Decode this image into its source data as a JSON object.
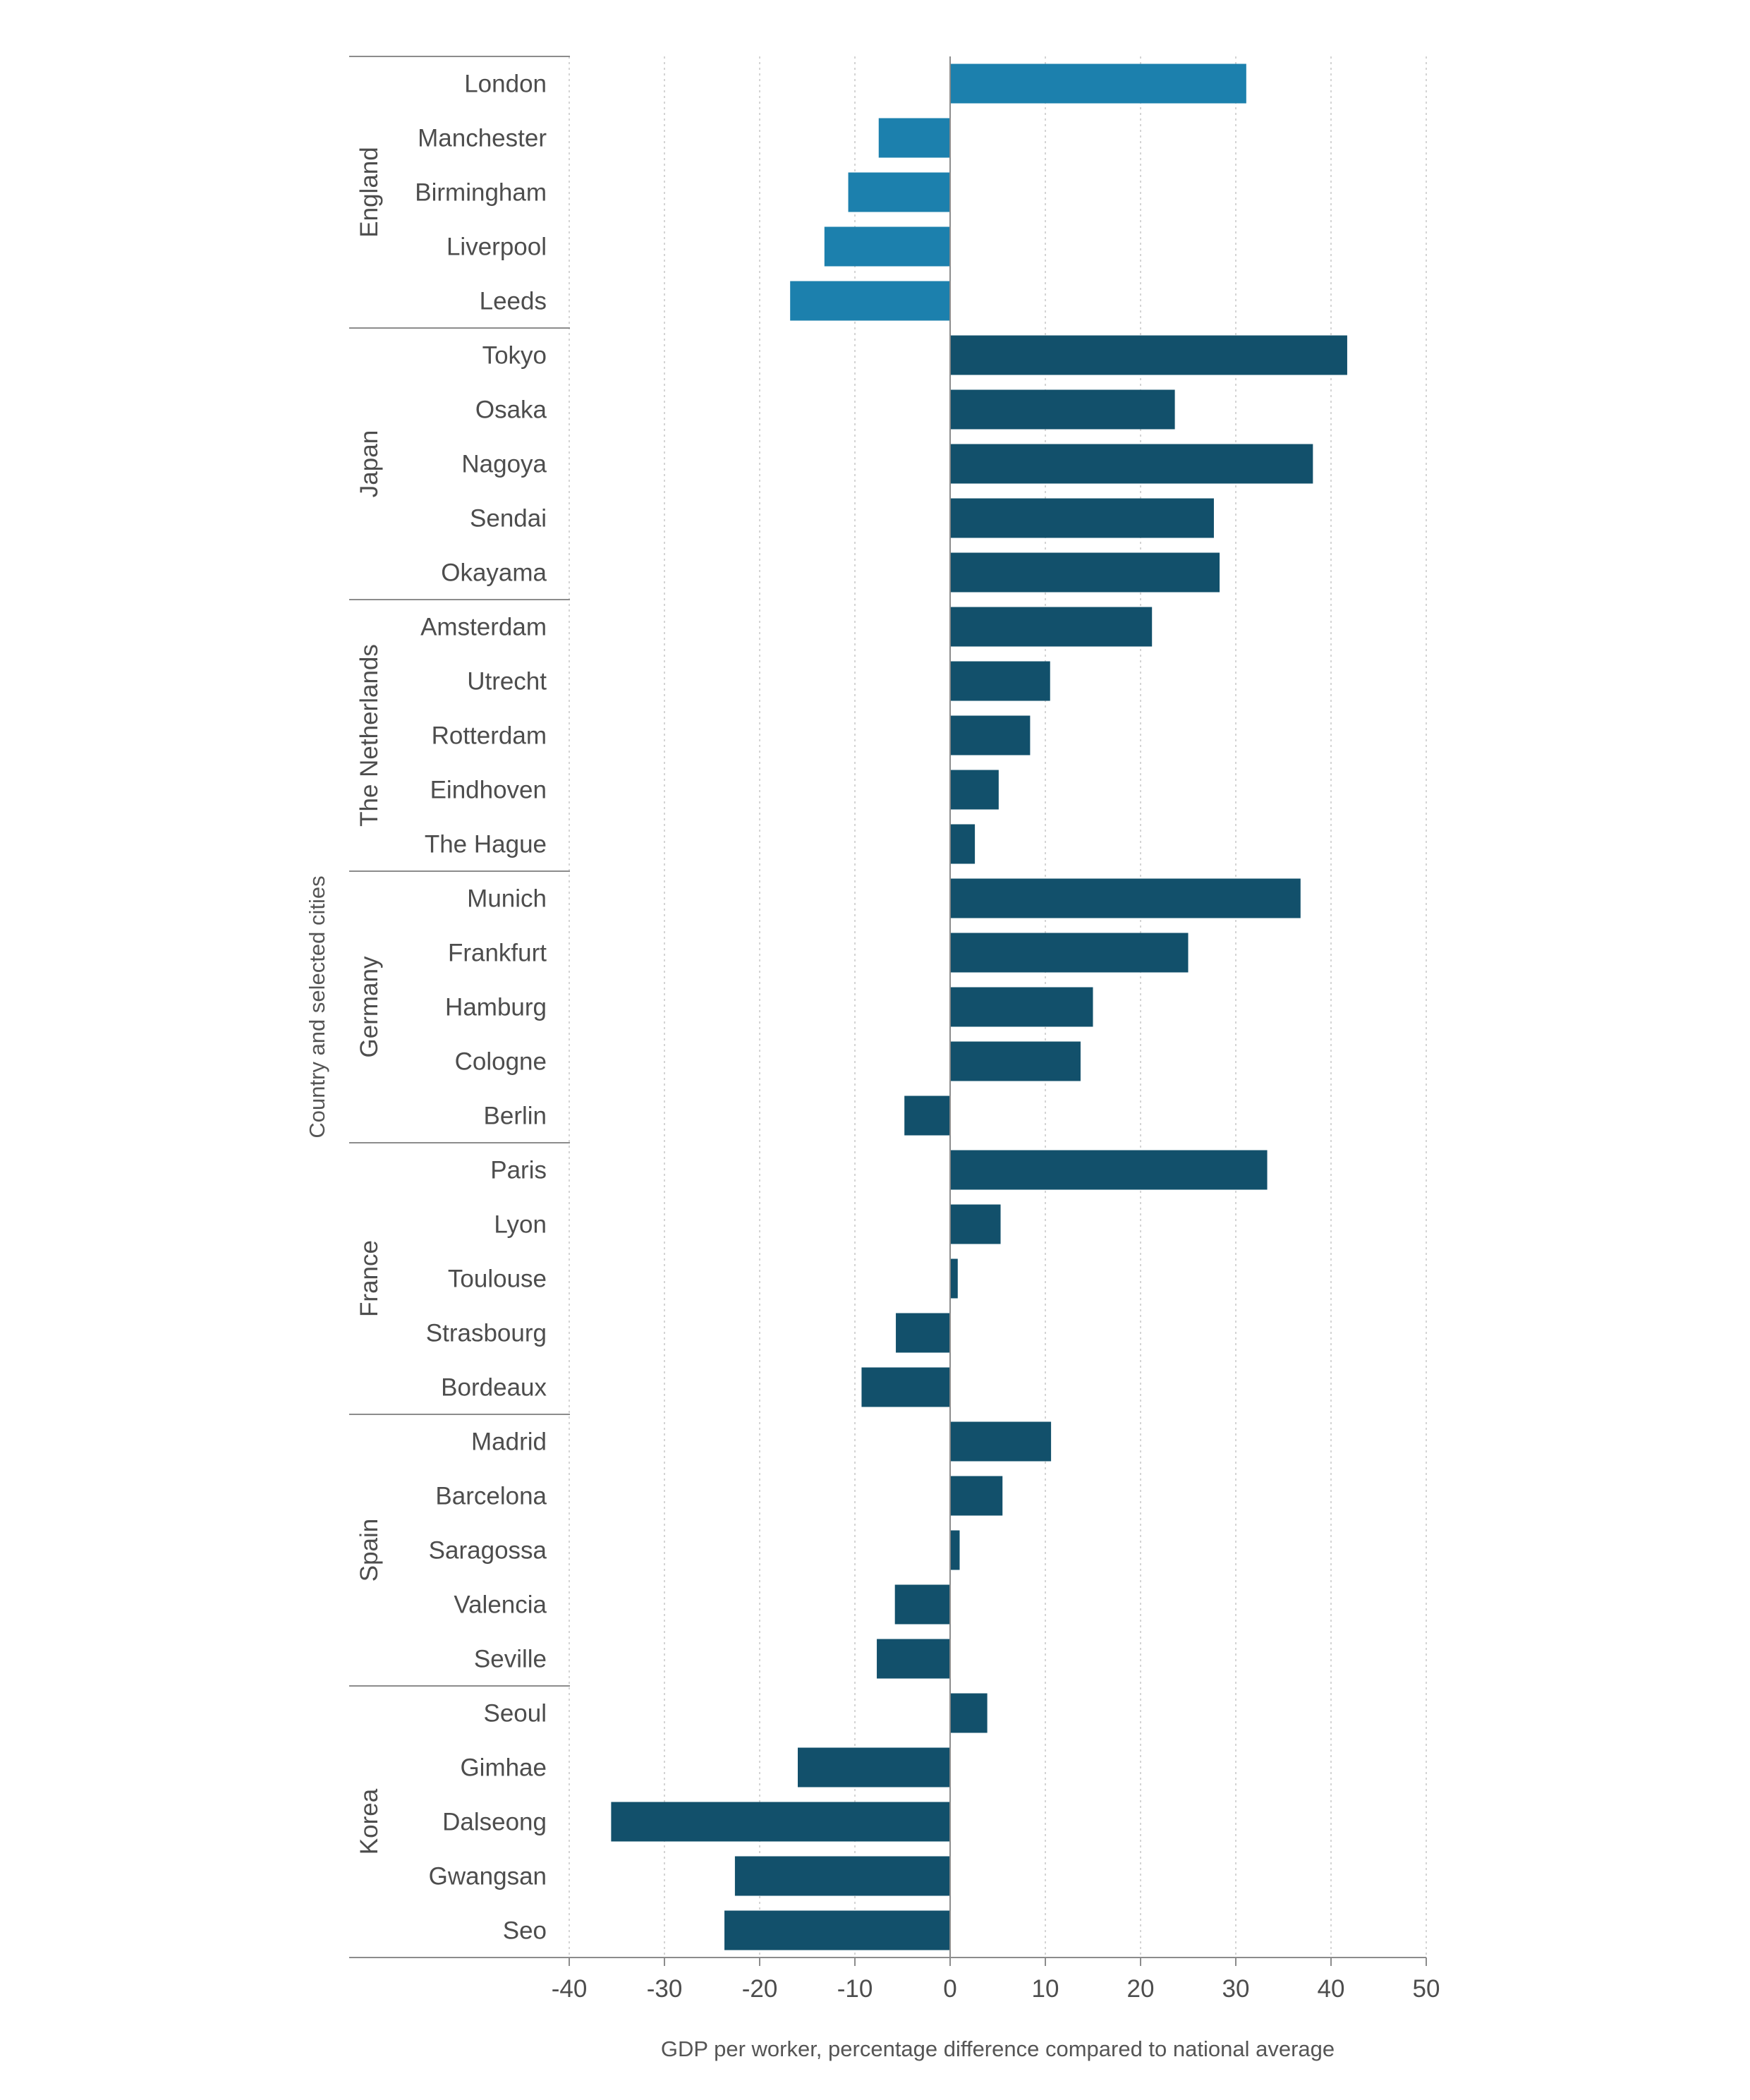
{
  "colors": {
    "highlight": "#1c80ad",
    "bar": "#12506b",
    "grid": "#d4d4d4",
    "axis": "#8c8c8c",
    "text": "#4d4d4d"
  },
  "chart_data": {
    "type": "bar",
    "orientation": "horizontal",
    "xlabel": "GDP per worker, percentage difference compared to national average",
    "ylabel": "Country and selected cities",
    "xlim": [
      -40,
      50
    ],
    "xticks": [
      -40,
      -30,
      -20,
      -10,
      0,
      10,
      20,
      30,
      40,
      50
    ],
    "grid": "vertical dotted",
    "groups": [
      {
        "name": "England",
        "highlight": true,
        "items": [
          {
            "city": "London",
            "value": 31.1
          },
          {
            "city": "Manchester",
            "value": -7.5
          },
          {
            "city": "Birmingham",
            "value": -10.7
          },
          {
            "city": "Liverpool",
            "value": -13.2
          },
          {
            "city": "Leeds",
            "value": -16.8
          }
        ]
      },
      {
        "name": "Japan",
        "items": [
          {
            "city": "Tokyo",
            "value": 41.7
          },
          {
            "city": "Osaka",
            "value": 23.6
          },
          {
            "city": "Nagoya",
            "value": 38.1
          },
          {
            "city": "Sendai",
            "value": 27.7
          },
          {
            "city": "Okayama",
            "value": 28.3
          }
        ]
      },
      {
        "name": "The Netherlands",
        "items": [
          {
            "city": "Amsterdam",
            "value": 21.2
          },
          {
            "city": "Utrecht",
            "value": 10.5
          },
          {
            "city": "Rotterdam",
            "value": 8.4
          },
          {
            "city": "Eindhoven",
            "value": 5.1
          },
          {
            "city": "The Hague",
            "value": 2.6
          }
        ]
      },
      {
        "name": "Germany",
        "items": [
          {
            "city": "Munich",
            "value": 36.8
          },
          {
            "city": "Frankfurt",
            "value": 25.0
          },
          {
            "city": "Hamburg",
            "value": 15.0
          },
          {
            "city": "Cologne",
            "value": 13.7
          },
          {
            "city": "Berlin",
            "value": -4.8
          }
        ]
      },
      {
        "name": "France",
        "items": [
          {
            "city": "Paris",
            "value": 33.3
          },
          {
            "city": "Lyon",
            "value": 5.3
          },
          {
            "city": "Toulouse",
            "value": 0.8
          },
          {
            "city": "Strasbourg",
            "value": -5.7
          },
          {
            "city": "Bordeaux",
            "value": -9.3
          }
        ]
      },
      {
        "name": "Spain",
        "items": [
          {
            "city": "Madrid",
            "value": 10.6
          },
          {
            "city": "Barcelona",
            "value": 5.5
          },
          {
            "city": "Saragossa",
            "value": 1.0
          },
          {
            "city": "Valencia",
            "value": -5.8
          },
          {
            "city": "Seville",
            "value": -7.7
          }
        ]
      },
      {
        "name": "Korea",
        "items": [
          {
            "city": "Seoul",
            "value": 3.9
          },
          {
            "city": "Gimhae",
            "value": -16.0
          },
          {
            "city": "Dalseong",
            "value": -35.6
          },
          {
            "city": "Gwangsan",
            "value": -22.6
          },
          {
            "city": "Seo",
            "value": -23.7
          }
        ]
      }
    ]
  }
}
